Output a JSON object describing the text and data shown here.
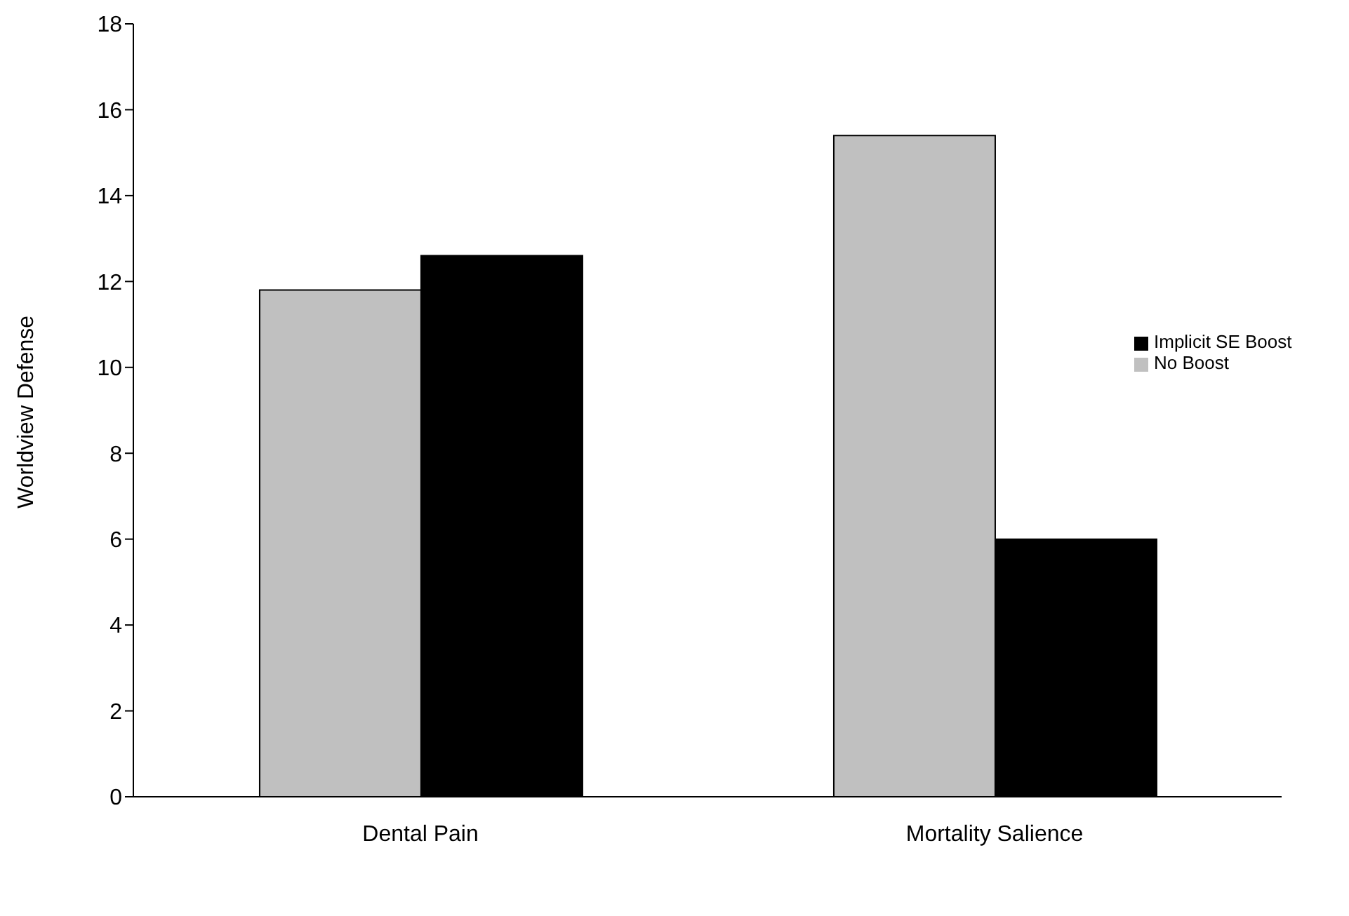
{
  "chart_data": {
    "type": "bar",
    "ylabel": "Worldview Defense",
    "categories": [
      "Dental Pain",
      "Mortality Salience"
    ],
    "series": [
      {
        "name": "No Boost",
        "color": "#c0c0c0",
        "values": [
          11.8,
          15.4
        ]
      },
      {
        "name": "Implicit SE Boost",
        "color": "#000000",
        "values": [
          12.6,
          6.0
        ]
      }
    ],
    "ylim": [
      0,
      18
    ],
    "yticks": [
      0,
      2,
      4,
      6,
      8,
      10,
      12,
      14,
      16,
      18
    ],
    "grid": false,
    "legend": "right"
  }
}
